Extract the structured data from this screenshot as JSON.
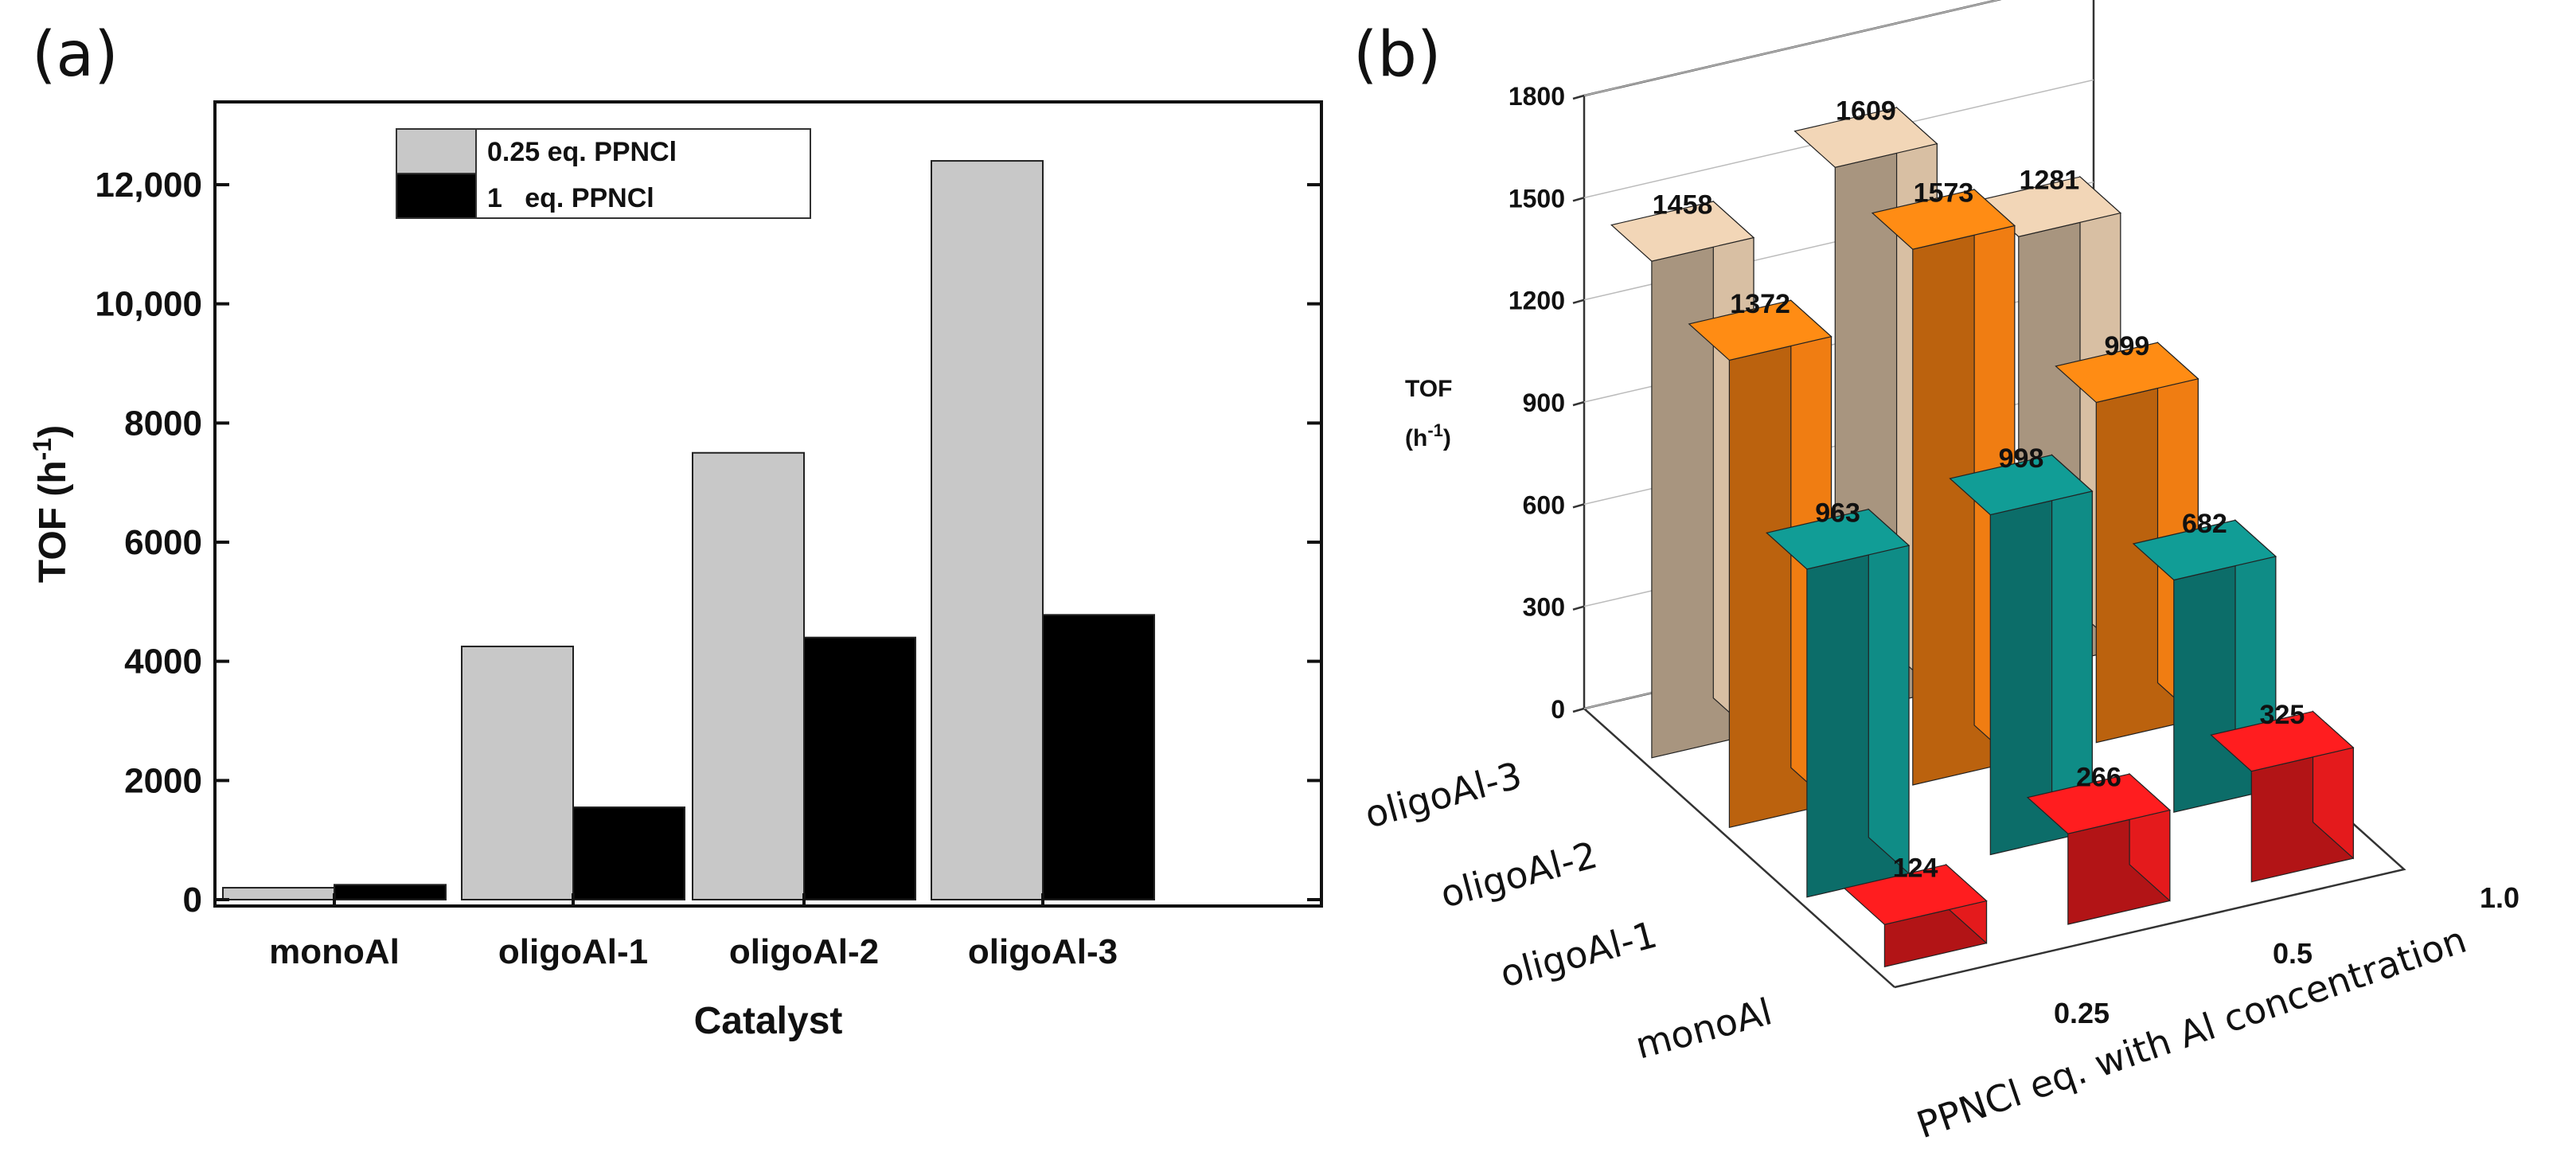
{
  "panels": {
    "a": {
      "letter": "(a)"
    },
    "b": {
      "letter": "(b)"
    }
  },
  "chart_data": [
    {
      "type": "bar",
      "panel": "(a)",
      "categories": [
        "monoAl",
        "oligoAl-1",
        "oligoAl-2",
        "oligoAl-3"
      ],
      "series": [
        {
          "name": "0.25 eq. PPNCl",
          "color": "#c8c8c8",
          "values": [
            200,
            4250,
            7500,
            12400
          ]
        },
        {
          "name": "1   eq. PPNCl",
          "color": "#000000",
          "values": [
            250,
            1550,
            4400,
            4780
          ]
        }
      ],
      "xlabel": "Catalyst",
      "ylabel": "TOF (h",
      "ylabel_sup": "-1",
      "ylabel_close": ")",
      "ylim": [
        0,
        13500
      ],
      "yticks": [
        0,
        2000,
        4000,
        6000,
        8000,
        10000,
        12000
      ],
      "ytick_labels": [
        "0",
        "2000",
        "4000",
        "6000",
        "8000",
        "10,000",
        "12,000"
      ],
      "legend_position": "top-center"
    },
    {
      "type": "bar3d",
      "panel": "(b)",
      "rows": [
        "monoAl",
        "oligoAl-1",
        "oligoAl-2",
        "oligoAl-3"
      ],
      "columns": [
        "0.25",
        "0.5",
        "1.0"
      ],
      "row_colors": {
        "monoAl": "#e41a1c",
        "oligoAl-1": "#0f8c86",
        "oligoAl-2": "#f07d12",
        "oligoAl-3": "#d8bfa3"
      },
      "values": {
        "oligoAl-3": [
          1458,
          1609,
          1281
        ],
        "oligoAl-2": [
          1372,
          1573,
          999
        ],
        "oligoAl-1": [
          963,
          998,
          682
        ],
        "monoAl": [
          124,
          266,
          325
        ]
      },
      "zlabel_line1": "TOF",
      "zlabel_line2": "(h",
      "zlabel_sup": "-1",
      "zlabel_close": ")",
      "xlabel": "PPNCl eq. with Al concentration",
      "zlim": [
        0,
        1800
      ],
      "zticks": [
        0,
        300,
        600,
        900,
        1200,
        1500,
        1800
      ]
    }
  ]
}
